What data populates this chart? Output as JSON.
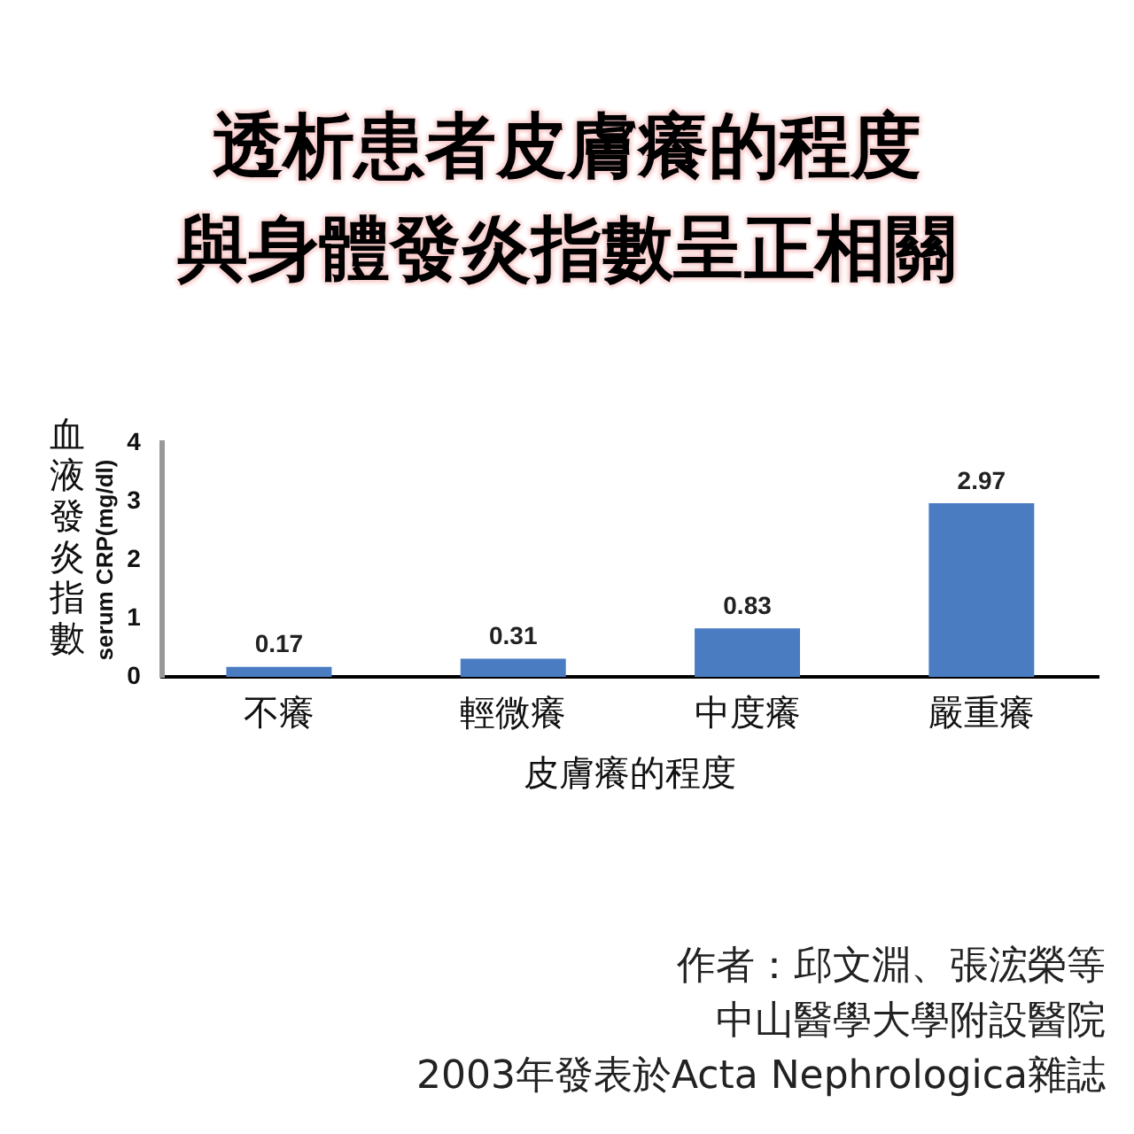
{
  "chart_data": {
    "type": "bar",
    "title": "透析患者皮膚癢的程度",
    "subtitle": "與身體發炎指數呈正相關",
    "xlabel": "皮膚癢的程度",
    "ylabel": "serum CRP(mg/dl)",
    "categories": [
      "不癢",
      "輕微癢",
      "中度癢",
      "嚴重癢"
    ],
    "values": [
      0.17,
      0.31,
      0.83,
      2.97
    ],
    "color": "#4a7cc2",
    "ylim": [
      0,
      4
    ],
    "yticks": [
      0,
      1,
      2,
      3,
      4
    ],
    "grid": false,
    "data_labels": true,
    "annotations": [
      "血液發炎指數",
      "作者：邱文淵、張浤榮等",
      "中山醫學大學附設醫院",
      "2003年發表於Acta Nephrologica雜誌"
    ]
  }
}
